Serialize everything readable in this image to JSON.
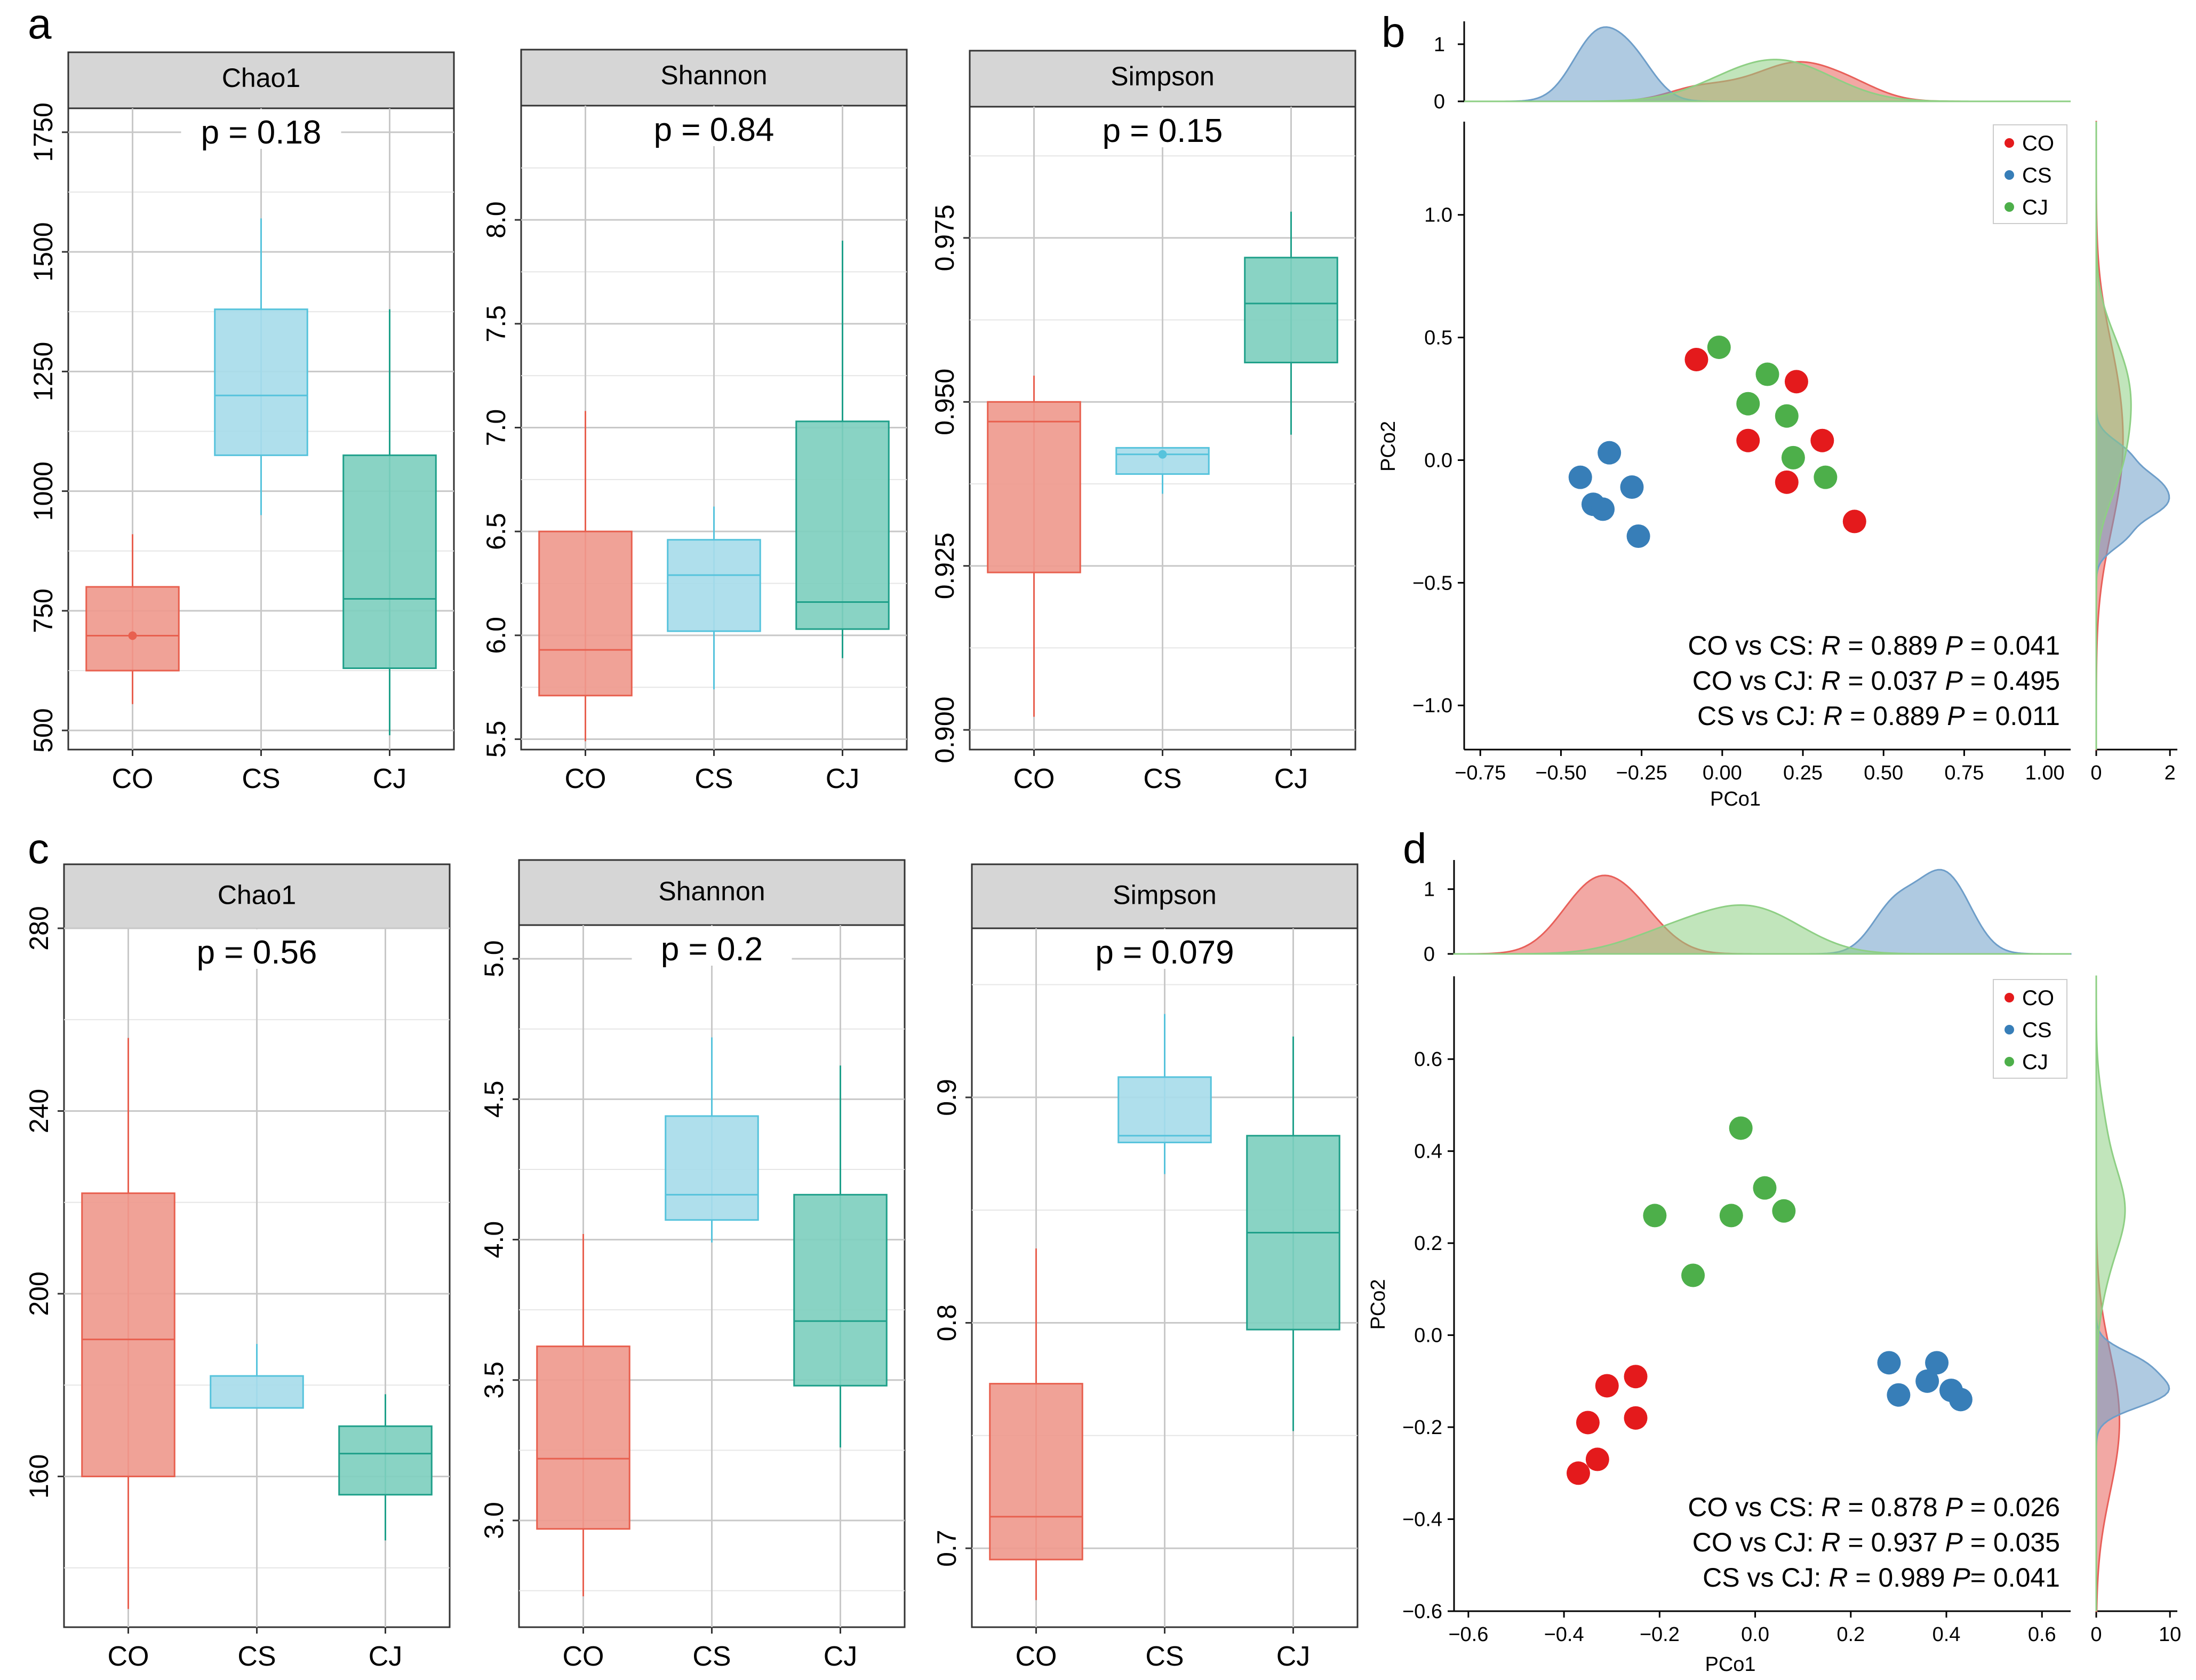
{
  "panel_labels": {
    "a": "a",
    "b": "b",
    "c": "c",
    "d": "d"
  },
  "colors": {
    "CO_fill": "#EF9A8E",
    "CO_stroke": "#E8604F",
    "CS_fill": "#A8DCEA",
    "CS_stroke": "#56C3DC",
    "CJ_fill": "#7FCFBF",
    "CJ_stroke": "#1FA08A",
    "strip_fill": "#D6D6D6",
    "pt_CO": "#E41A1C",
    "pt_CS": "#377EB8",
    "pt_CJ": "#4DAF4A",
    "dens_CO": "#E8605A",
    "dens_CS": "#6E9EC9",
    "dens_CJ": "#8ECF84"
  },
  "chart_data": [
    {
      "id": "a-chao1",
      "type": "box",
      "title": "Chao1",
      "pvalue": "p = 0.18",
      "categories": [
        "CO",
        "CS",
        "CJ"
      ],
      "ylim": [
        460,
        1800
      ],
      "yticks": [
        500,
        750,
        1000,
        1250,
        1500,
        1750
      ],
      "ytick_labels": [
        "500",
        "750",
        "1000",
        "1250",
        "1500",
        "1750"
      ],
      "boxes": [
        {
          "group": "CO",
          "min": 555,
          "q1": 625,
          "median": 698,
          "q3": 800,
          "max": 910,
          "mean": 698
        },
        {
          "group": "CS",
          "min": 950,
          "q1": 1075,
          "median": 1200,
          "q3": 1380,
          "max": 1570
        },
        {
          "group": "CJ",
          "min": 490,
          "q1": 630,
          "median": 775,
          "q3": 1075,
          "max": 1380
        }
      ]
    },
    {
      "id": "a-shannon",
      "type": "box",
      "title": "Shannon",
      "pvalue": "p = 0.84",
      "categories": [
        "CO",
        "CS",
        "CJ"
      ],
      "ylim": [
        5.45,
        8.55
      ],
      "yticks": [
        5.5,
        6.0,
        6.5,
        7.0,
        7.5,
        8.0
      ],
      "ytick_labels": [
        "5.5",
        "6.0",
        "6.5",
        "7.0",
        "7.5",
        "8.0"
      ],
      "boxes": [
        {
          "group": "CO",
          "min": 5.49,
          "q1": 5.71,
          "median": 5.93,
          "q3": 6.5,
          "max": 7.08
        },
        {
          "group": "CS",
          "min": 5.74,
          "q1": 6.02,
          "median": 6.29,
          "q3": 6.46,
          "max": 6.62
        },
        {
          "group": "CJ",
          "min": 5.89,
          "q1": 6.03,
          "median": 6.16,
          "q3": 7.03,
          "max": 7.9
        }
      ]
    },
    {
      "id": "a-simpson",
      "type": "box",
      "title": "Simpson",
      "pvalue": "p = 0.15",
      "categories": [
        "CO",
        "CS",
        "CJ"
      ],
      "ylim": [
        0.897,
        0.995
      ],
      "yticks": [
        0.9,
        0.925,
        0.95,
        0.975
      ],
      "ytick_labels": [
        "0.900",
        "0.925",
        "0.950",
        "0.975"
      ],
      "boxes": [
        {
          "group": "CO",
          "min": 0.902,
          "q1": 0.924,
          "median": 0.947,
          "q3": 0.95,
          "max": 0.954
        },
        {
          "group": "CS",
          "min": 0.936,
          "q1": 0.939,
          "median": 0.942,
          "q3": 0.943,
          "max": 0.943,
          "mean": 0.942
        },
        {
          "group": "CJ",
          "min": 0.945,
          "q1": 0.956,
          "median": 0.965,
          "q3": 0.972,
          "max": 0.979
        }
      ]
    },
    {
      "id": "c-chao1",
      "type": "box",
      "title": "Chao1",
      "pvalue": "p = 0.56",
      "categories": [
        "CO",
        "CS",
        "CJ"
      ],
      "ylim": [
        127,
        280
      ],
      "yticks": [
        160,
        200,
        240,
        280
      ],
      "ytick_labels": [
        "160",
        "200",
        "240",
        "280"
      ],
      "boxes": [
        {
          "group": "CO",
          "min": 131,
          "q1": 160,
          "median": 190,
          "q3": 222,
          "max": 256
        },
        {
          "group": "CS",
          "min": 175,
          "q1": 175,
          "median": 175,
          "q3": 182,
          "max": 189
        },
        {
          "group": "CJ",
          "min": 146,
          "q1": 156,
          "median": 165,
          "q3": 171,
          "max": 178
        }
      ]
    },
    {
      "id": "c-shannon",
      "type": "box",
      "title": "Shannon",
      "pvalue": "p = 0.2",
      "categories": [
        "CO",
        "CS",
        "CJ"
      ],
      "ylim": [
        2.62,
        5.12
      ],
      "yticks": [
        3.0,
        3.5,
        4.0,
        4.5,
        5.0
      ],
      "ytick_labels": [
        "3.0",
        "3.5",
        "4.0",
        "4.5",
        "5.0"
      ],
      "boxes": [
        {
          "group": "CO",
          "min": 2.73,
          "q1": 2.97,
          "median": 3.22,
          "q3": 3.62,
          "max": 4.02
        },
        {
          "group": "CS",
          "min": 3.99,
          "q1": 4.07,
          "median": 4.16,
          "q3": 4.44,
          "max": 4.72
        },
        {
          "group": "CJ",
          "min": 3.26,
          "q1": 3.48,
          "median": 3.71,
          "q3": 4.16,
          "max": 4.62
        }
      ]
    },
    {
      "id": "c-simpson",
      "type": "box",
      "title": "Simpson",
      "pvalue": "p = 0.079",
      "categories": [
        "CO",
        "CS",
        "CJ"
      ],
      "ylim": [
        0.665,
        0.975
      ],
      "yticks": [
        0.7,
        0.8,
        0.9
      ],
      "ytick_labels": [
        "0.7",
        "0.8",
        "0.9"
      ],
      "boxes": [
        {
          "group": "CO",
          "min": 0.677,
          "q1": 0.695,
          "median": 0.714,
          "q3": 0.773,
          "max": 0.833
        },
        {
          "group": "CS",
          "min": 0.866,
          "q1": 0.88,
          "median": 0.883,
          "q3": 0.909,
          "max": 0.937
        },
        {
          "group": "CJ",
          "min": 0.752,
          "q1": 0.797,
          "median": 0.84,
          "q3": 0.883,
          "max": 0.927
        }
      ]
    },
    {
      "id": "b-pcoa",
      "type": "scatter",
      "xlabel": "PCo1",
      "ylabel": "PCo2",
      "xlim": [
        -0.8,
        1.08
      ],
      "ylim": [
        -1.18,
        1.38
      ],
      "xticks": [
        -0.75,
        -0.5,
        -0.25,
        0.0,
        0.25,
        0.5,
        0.75,
        1.0
      ],
      "xtick_labels": [
        "−0.75",
        "−0.50",
        "−0.25",
        "0.00",
        "0.25",
        "0.50",
        "0.75",
        "1.00"
      ],
      "yticks": [
        -1.0,
        -0.5,
        0.0,
        0.5,
        1.0
      ],
      "ytick_labels": [
        "−1.0",
        "−0.5",
        "0.0",
        "0.5",
        "1.0"
      ],
      "legend": [
        "CO",
        "CS",
        "CJ"
      ],
      "legend_position": "top-right",
      "series": [
        {
          "name": "CO",
          "x": [
            -0.08,
            0.23,
            0.31,
            0.08,
            0.2,
            0.41
          ],
          "y": [
            0.41,
            0.32,
            0.08,
            0.08,
            -0.09,
            -0.25
          ]
        },
        {
          "name": "CS",
          "x": [
            -0.44,
            -0.35,
            -0.4,
            -0.37,
            -0.28,
            -0.26
          ],
          "y": [
            -0.07,
            0.03,
            -0.18,
            -0.2,
            -0.11,
            -0.31
          ]
        },
        {
          "name": "CJ",
          "x": [
            -0.01,
            0.14,
            0.08,
            0.2,
            0.22,
            0.32
          ],
          "y": [
            0.46,
            0.35,
            0.23,
            0.18,
            0.01,
            -0.07
          ]
        }
      ],
      "annotations": [
        {
          "lead": "CO vs CS: ",
          "R": "R",
          "rval": " = 0.889 ",
          "P": "P",
          "pval": " = 0.041"
        },
        {
          "lead": "CO vs  CJ: ",
          "R": "R",
          "rval": " = 0.037 ",
          "P": "P",
          "pval": " = 0.495"
        },
        {
          "lead": "CS vs CJ: ",
          "R": "R",
          "rval": " = 0.889 ",
          "P": "P",
          "pval": " = 0.011"
        }
      ],
      "top_density": {
        "yticks": [
          0,
          1
        ],
        "ytick_labels": [
          "0",
          "1"
        ],
        "ymax": 1.4
      },
      "right_density": {
        "xticks": [
          0,
          2
        ],
        "xtick_labels": [
          "0",
          "2"
        ],
        "xmax": 2.2
      }
    },
    {
      "id": "d-pcoa",
      "type": "scatter",
      "xlabel": "PCo1",
      "ylabel": "PCo2",
      "xlim": [
        -0.63,
        0.66
      ],
      "ylim": [
        -0.6,
        0.78
      ],
      "xticks": [
        -0.6,
        -0.4,
        -0.2,
        0.0,
        0.2,
        0.4,
        0.6
      ],
      "xtick_labels": [
        "−0.6",
        "−0.4",
        "−0.2",
        "0.0",
        "0.2",
        "0.4",
        "0.6"
      ],
      "yticks": [
        -0.6,
        -0.4,
        -0.2,
        0.0,
        0.2,
        0.4,
        0.6
      ],
      "ytick_labels": [
        "−0.6",
        "−0.4",
        "−0.2",
        "0.0",
        "0.2",
        "0.4",
        "0.6"
      ],
      "legend": [
        "CO",
        "CS",
        "CJ"
      ],
      "legend_position": "top-right",
      "series": [
        {
          "name": "CO",
          "x": [
            -0.25,
            -0.31,
            -0.35,
            -0.25,
            -0.33,
            -0.37
          ],
          "y": [
            -0.09,
            -0.11,
            -0.19,
            -0.18,
            -0.27,
            -0.3
          ]
        },
        {
          "name": "CS",
          "x": [
            0.28,
            0.3,
            0.36,
            0.38,
            0.41,
            0.43
          ],
          "y": [
            -0.06,
            -0.13,
            -0.1,
            -0.06,
            -0.12,
            -0.14
          ]
        },
        {
          "name": "CJ",
          "x": [
            -0.03,
            0.02,
            -0.21,
            -0.05,
            0.06,
            -0.13
          ],
          "y": [
            0.45,
            0.32,
            0.26,
            0.26,
            0.27,
            0.13
          ]
        }
      ],
      "annotations": [
        {
          "lead": "CO vs CS: ",
          "R": "R",
          "rval": " = 0.878 ",
          "P": "P",
          "pval": " = 0.026"
        },
        {
          "lead": "CO vs CJ: ",
          "R": "R",
          "rval": " = 0.937  ",
          "P": "P",
          "pval": " = 0.035"
        },
        {
          "lead": "CS vs CJ:  ",
          "R": "R",
          "rval": " = 0.989 ",
          "P": "P",
          "pval": "= 0.041"
        }
      ],
      "top_density": {
        "yticks": [
          0,
          1
        ],
        "ytick_labels": [
          "0",
          "1"
        ],
        "ymax": 1.45
      },
      "right_density": {
        "xticks": [
          0,
          10
        ],
        "xtick_labels": [
          "0",
          "10"
        ],
        "xmax": 11
      }
    }
  ]
}
